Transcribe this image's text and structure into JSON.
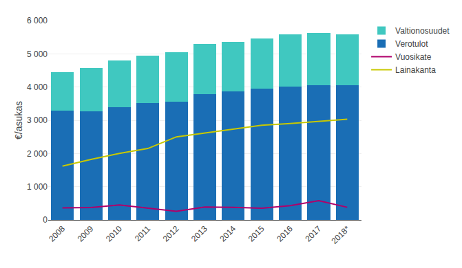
{
  "chart_data": {
    "type": "bar",
    "stacked": true,
    "ylabel": "€/asukas",
    "categories": [
      "2008",
      "2009",
      "2010",
      "2011",
      "2012",
      "2013",
      "2014",
      "2015",
      "2016",
      "2017",
      "2018*"
    ],
    "series": [
      {
        "name": "Verotulot",
        "type": "bar",
        "color": "#1a6eb5",
        "values": [
          3280,
          3270,
          3400,
          3510,
          3560,
          3780,
          3870,
          3960,
          4020,
          4060,
          4060
        ]
      },
      {
        "name": "Valtionosuudet",
        "type": "bar",
        "color": "#40c8c0",
        "values": [
          1170,
          1310,
          1400,
          1440,
          1490,
          1510,
          1490,
          1510,
          1570,
          1560,
          1530
        ]
      },
      {
        "name": "Vuosikate",
        "type": "line",
        "color": "#b0006a",
        "values": [
          360,
          370,
          450,
          350,
          260,
          390,
          380,
          350,
          430,
          580,
          380
        ]
      },
      {
        "name": "Lainakanta",
        "type": "line",
        "color": "#c8c800",
        "values": [
          1620,
          1820,
          2000,
          2150,
          2500,
          2620,
          2740,
          2850,
          2900,
          2960,
          3030
        ]
      }
    ],
    "ylim": [
      0,
      6000
    ],
    "yticks": [
      0,
      {
        "value": 1000,
        "label": "1 000"
      },
      {
        "value": 2000,
        "label": "2 000"
      },
      {
        "value": 3000,
        "label": "3 000"
      },
      {
        "value": 4000,
        "label": "4 000"
      },
      {
        "value": 5000,
        "label": "5 000"
      },
      {
        "value": 6000,
        "label": "6 000"
      }
    ],
    "grid": true,
    "legend": "right"
  }
}
